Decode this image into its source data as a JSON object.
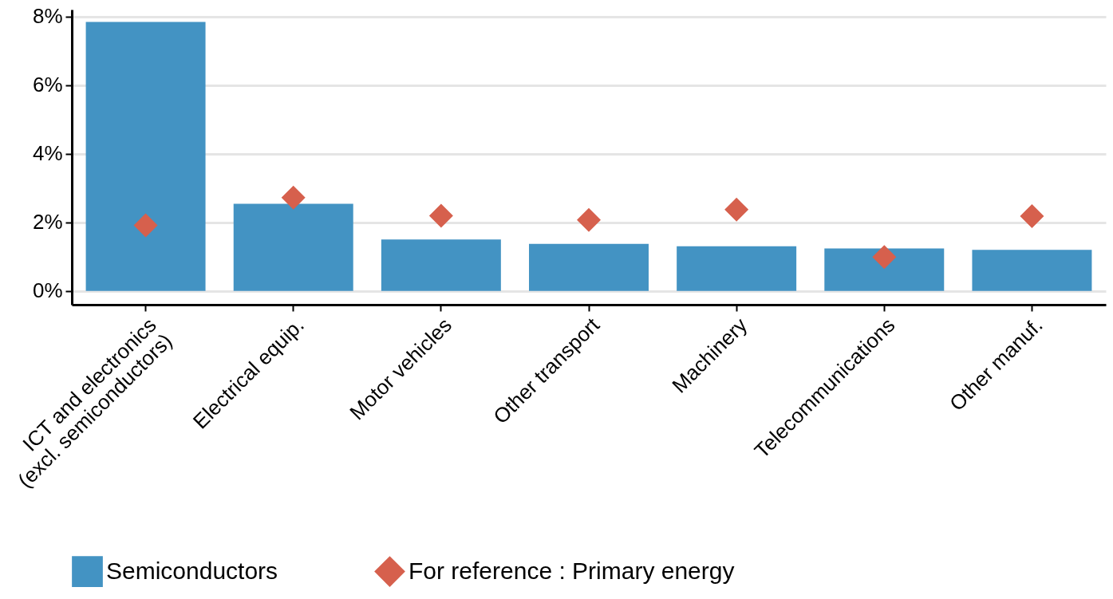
{
  "chart_data": {
    "type": "bar",
    "categories": [
      "ICT and electronics\n(excl. semiconductors)",
      "Electrical equip.",
      "Motor vehicles",
      "Other transport",
      "Machinery",
      "Telecommunications",
      "Other manuf."
    ],
    "series": [
      {
        "name": "Semiconductors",
        "color": "#4393c3",
        "values": [
          7.84,
          2.54,
          1.5,
          1.37,
          1.3,
          1.24,
          1.2
        ]
      },
      {
        "name": "For reference : Primary energy",
        "type": "scatter",
        "marker": "diamond",
        "color": "#d6604d",
        "values": [
          1.91,
          2.72,
          2.19,
          2.07,
          2.37,
          0.99,
          2.18
        ]
      }
    ],
    "ylim": [
      -0.4,
      8.2
    ],
    "yticks": [
      {
        "value": 0,
        "label": "0%"
      },
      {
        "value": 2,
        "label": "2%"
      },
      {
        "value": 4,
        "label": "4%"
      },
      {
        "value": 6,
        "label": "6%"
      },
      {
        "value": 8,
        "label": "8%"
      }
    ],
    "grid": "y",
    "legend": "bottom"
  }
}
